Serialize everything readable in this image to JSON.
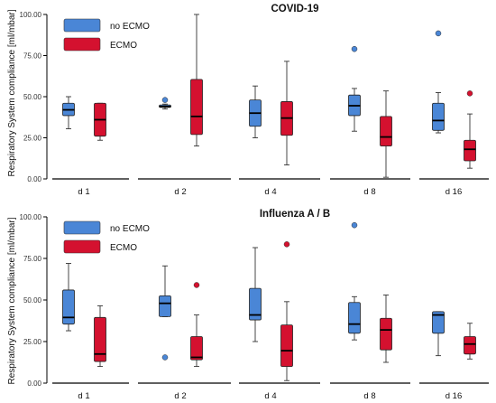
{
  "colors": {
    "no_ecmo": "#4a86d6",
    "ecmo": "#d4112f",
    "axis": "#000000",
    "whisker": "#333333"
  },
  "chart_data": [
    {
      "type": "box",
      "title": "COVID-19",
      "ylabel": "Respiratory System compliance [ml/mbar]",
      "ylim": [
        0,
        100
      ],
      "yticks": [
        "0.00",
        "25.00",
        "50.00",
        "75.00",
        "100.00"
      ],
      "categories": [
        "d 1",
        "d 2",
        "d 4",
        "d 8",
        "d 16"
      ],
      "legend": {
        "position": "top-left",
        "entries": [
          "no ECMO",
          "ECMO"
        ]
      },
      "series": [
        {
          "name": "no ECMO",
          "boxes": [
            {
              "whisker_low": 30.5,
              "q1": 38.5,
              "median": 42,
              "q3": 46,
              "whisker_high": 50,
              "outliers": []
            },
            {
              "whisker_low": 42.5,
              "q1": 43.5,
              "median": 44,
              "q3": 45,
              "whisker_high": 45.5,
              "outliers": [
                48
              ]
            },
            {
              "whisker_low": 25,
              "q1": 32,
              "median": 40,
              "q3": 48,
              "whisker_high": 56.5,
              "outliers": []
            },
            {
              "whisker_low": 29,
              "q1": 38.5,
              "median": 44.5,
              "q3": 51,
              "whisker_high": 55,
              "outliers": [
                79
              ]
            },
            {
              "whisker_low": 28,
              "q1": 29.5,
              "median": 35.5,
              "q3": 46,
              "whisker_high": 52.5,
              "outliers": [
                88.5
              ]
            }
          ]
        },
        {
          "name": "ECMO",
          "boxes": [
            {
              "whisker_low": 23.5,
              "q1": 26,
              "median": 36,
              "q3": 46,
              "whisker_high": 46,
              "outliers": []
            },
            {
              "whisker_low": 20,
              "q1": 27,
              "median": 38,
              "q3": 60.5,
              "whisker_high": 100,
              "outliers": []
            },
            {
              "whisker_low": 8.5,
              "q1": 26.5,
              "median": 37,
              "q3": 47,
              "whisker_high": 71.5,
              "outliers": []
            },
            {
              "whisker_low": 1,
              "q1": 20,
              "median": 25.5,
              "q3": 38,
              "whisker_high": 53.5,
              "outliers": []
            },
            {
              "whisker_low": 6.5,
              "q1": 11,
              "median": 18,
              "q3": 23.5,
              "whisker_high": 39.5,
              "outliers": [
                52
              ]
            }
          ]
        }
      ]
    },
    {
      "type": "box",
      "title": "Influenza A / B",
      "ylabel": "Respiratory System compliance [ml/mbar]",
      "ylim": [
        0,
        100
      ],
      "yticks": [
        "0.00",
        "25.00",
        "50.00",
        "75.00",
        "100.00"
      ],
      "categories": [
        "d 1",
        "d 2",
        "d 4",
        "d 8",
        "d 16"
      ],
      "legend": {
        "position": "top-left",
        "entries": [
          "no ECMO",
          "ECMO"
        ]
      },
      "series": [
        {
          "name": "no ECMO",
          "boxes": [
            {
              "whisker_low": 31.5,
              "q1": 35.5,
              "median": 39.5,
              "q3": 56,
              "whisker_high": 72,
              "outliers": []
            },
            {
              "whisker_low": 40,
              "q1": 40,
              "median": 48,
              "q3": 52.5,
              "whisker_high": 70.5,
              "outliers": [
                15.5
              ]
            },
            {
              "whisker_low": 25,
              "q1": 38,
              "median": 41,
              "q3": 57,
              "whisker_high": 81.5,
              "outliers": []
            },
            {
              "whisker_low": 26,
              "q1": 30,
              "median": 35.5,
              "q3": 48.5,
              "whisker_high": 52,
              "outliers": [
                95
              ]
            },
            {
              "whisker_low": 16.5,
              "q1": 30,
              "median": 41,
              "q3": 43,
              "whisker_high": 43,
              "outliers": []
            }
          ]
        },
        {
          "name": "ECMO",
          "boxes": [
            {
              "whisker_low": 10,
              "q1": 13,
              "median": 17.5,
              "q3": 39.5,
              "whisker_high": 46.5,
              "outliers": []
            },
            {
              "whisker_low": 10,
              "q1": 14,
              "median": 15.5,
              "q3": 28,
              "whisker_high": 41,
              "outliers": [
                59
              ]
            },
            {
              "whisker_low": 1.5,
              "q1": 10,
              "median": 19.5,
              "q3": 35,
              "whisker_high": 49,
              "outliers": [
                83.5
              ]
            },
            {
              "whisker_low": 12.5,
              "q1": 20,
              "median": 32,
              "q3": 39,
              "whisker_high": 53,
              "outliers": []
            },
            {
              "whisker_low": 14.5,
              "q1": 17.5,
              "median": 23.5,
              "q3": 28,
              "whisker_high": 36,
              "outliers": []
            }
          ]
        }
      ]
    }
  ]
}
